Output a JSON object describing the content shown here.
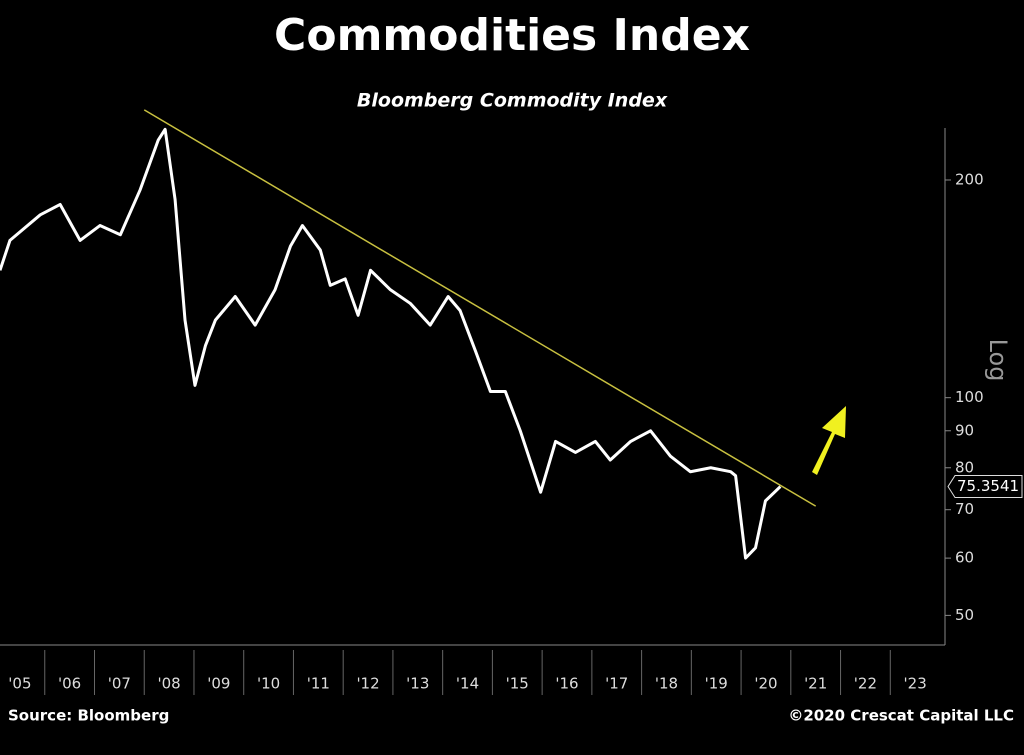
{
  "chart_data": {
    "type": "line",
    "title": "Commodities Index",
    "subtitle": "Bloomberg Commodity Index",
    "y_label": "Log",
    "source": "Source: Bloomberg",
    "copyright": "©2020 Crescat Capital LLC",
    "log_scale": true,
    "color": "#ffffff",
    "x": [
      2005.1,
      2005.3,
      2005.91,
      2006.31,
      2006.71,
      2007.11,
      2007.52,
      2007.92,
      2008.28,
      2008.42,
      2008.62,
      2008.82,
      2009.02,
      2009.23,
      2009.43,
      2009.83,
      2010.23,
      2010.63,
      2010.94,
      2011.18,
      2011.54,
      2011.74,
      2012.04,
      2012.3,
      2012.55,
      2012.95,
      2013.35,
      2013.75,
      2014.11,
      2014.35,
      2014.66,
      2014.96,
      2015.26,
      2015.56,
      2015.97,
      2016.27,
      2016.67,
      2017.07,
      2017.37,
      2017.78,
      2018.18,
      2018.58,
      2018.98,
      2019.39,
      2019.79,
      2019.89,
      2020.09,
      2020.29,
      2020.49,
      2020.79
    ],
    "values": [
      150,
      165,
      179,
      185,
      165,
      173,
      168,
      194,
      227,
      235,
      188,
      128,
      104,
      118,
      128,
      138,
      126,
      141,
      162,
      173,
      160,
      143,
      146,
      130,
      150,
      141,
      135,
      126,
      138,
      132,
      116,
      102,
      102,
      90,
      74,
      87,
      84,
      87,
      82,
      87,
      90,
      83,
      79,
      80,
      79,
      78,
      60,
      62,
      72,
      75.3541
    ],
    "trendline": {
      "x": [
        2008.0,
        2021.5
      ],
      "values": [
        250,
        70.8
      ],
      "color": "#c8c040"
    },
    "xlim": [
      2005.1,
      2024.1
    ],
    "xticks": [
      {
        "value": 2005,
        "label": "'05"
      },
      {
        "value": 2006,
        "label": "'06"
      },
      {
        "value": 2007,
        "label": "'07"
      },
      {
        "value": 2008,
        "label": "'08"
      },
      {
        "value": 2009,
        "label": "'09"
      },
      {
        "value": 2010,
        "label": "'10"
      },
      {
        "value": 2011,
        "label": "'11"
      },
      {
        "value": 2012,
        "label": "'12"
      },
      {
        "value": 2013,
        "label": "'13"
      },
      {
        "value": 2014,
        "label": "'14"
      },
      {
        "value": 2015,
        "label": "'15"
      },
      {
        "value": 2016,
        "label": "'16"
      },
      {
        "value": 2017,
        "label": "'17"
      },
      {
        "value": 2018,
        "label": "'18"
      },
      {
        "value": 2019,
        "label": "'19"
      },
      {
        "value": 2020,
        "label": "'20"
      },
      {
        "value": 2021,
        "label": "'21"
      },
      {
        "value": 2022,
        "label": "'22"
      },
      {
        "value": 2023,
        "label": "'23"
      }
    ],
    "ylim": [
      45.5,
      236
    ],
    "yticks": [
      50,
      60,
      70,
      80,
      90,
      100,
      200
    ]
  }
}
